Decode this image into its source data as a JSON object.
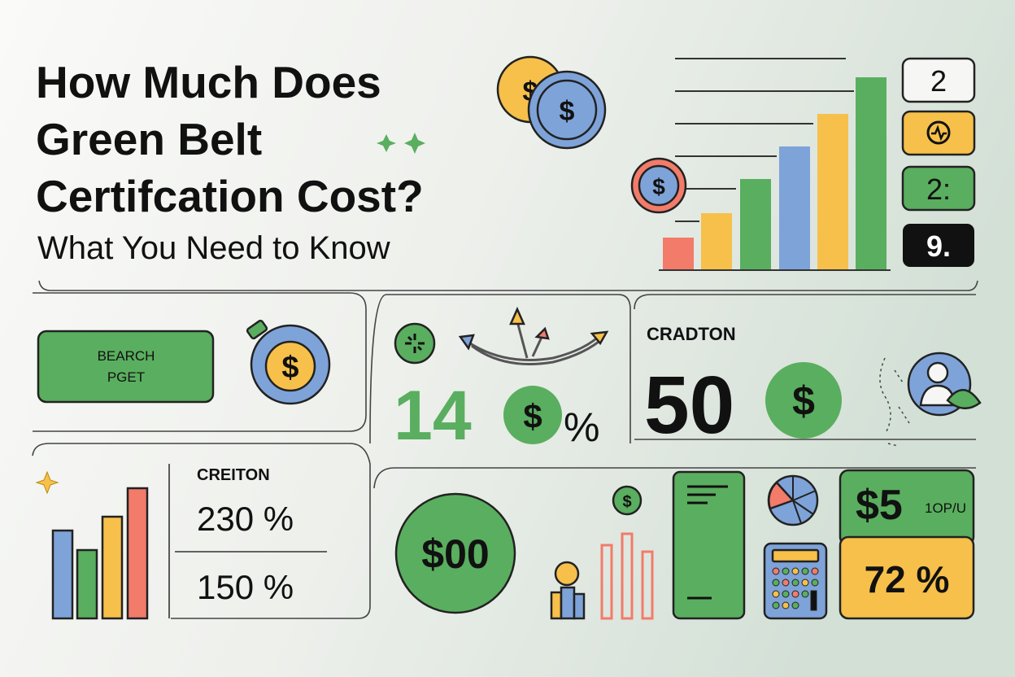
{
  "header": {
    "title_lines": [
      "How Much Does",
      "Green Belt",
      "Certifcation Cost?"
    ],
    "subtitle": "What You Need to Know"
  },
  "coin_symbol": "$",
  "badges": [
    "2",
    "2:",
    "9."
  ],
  "button": {
    "lines": [
      "BEARCH",
      "PGET"
    ]
  },
  "stat_panel_1": {
    "number": "14",
    "unit": "%"
  },
  "stat_panel_2": {
    "label": "CRADTON",
    "number": "50"
  },
  "stat_panel_3": {
    "label": "CREITON",
    "rows": [
      "230 %",
      "150 %"
    ]
  },
  "circle_amount": "$00",
  "price_card": {
    "amount": "$5",
    "note": "1OP/U",
    "percent": "72 %"
  }
}
